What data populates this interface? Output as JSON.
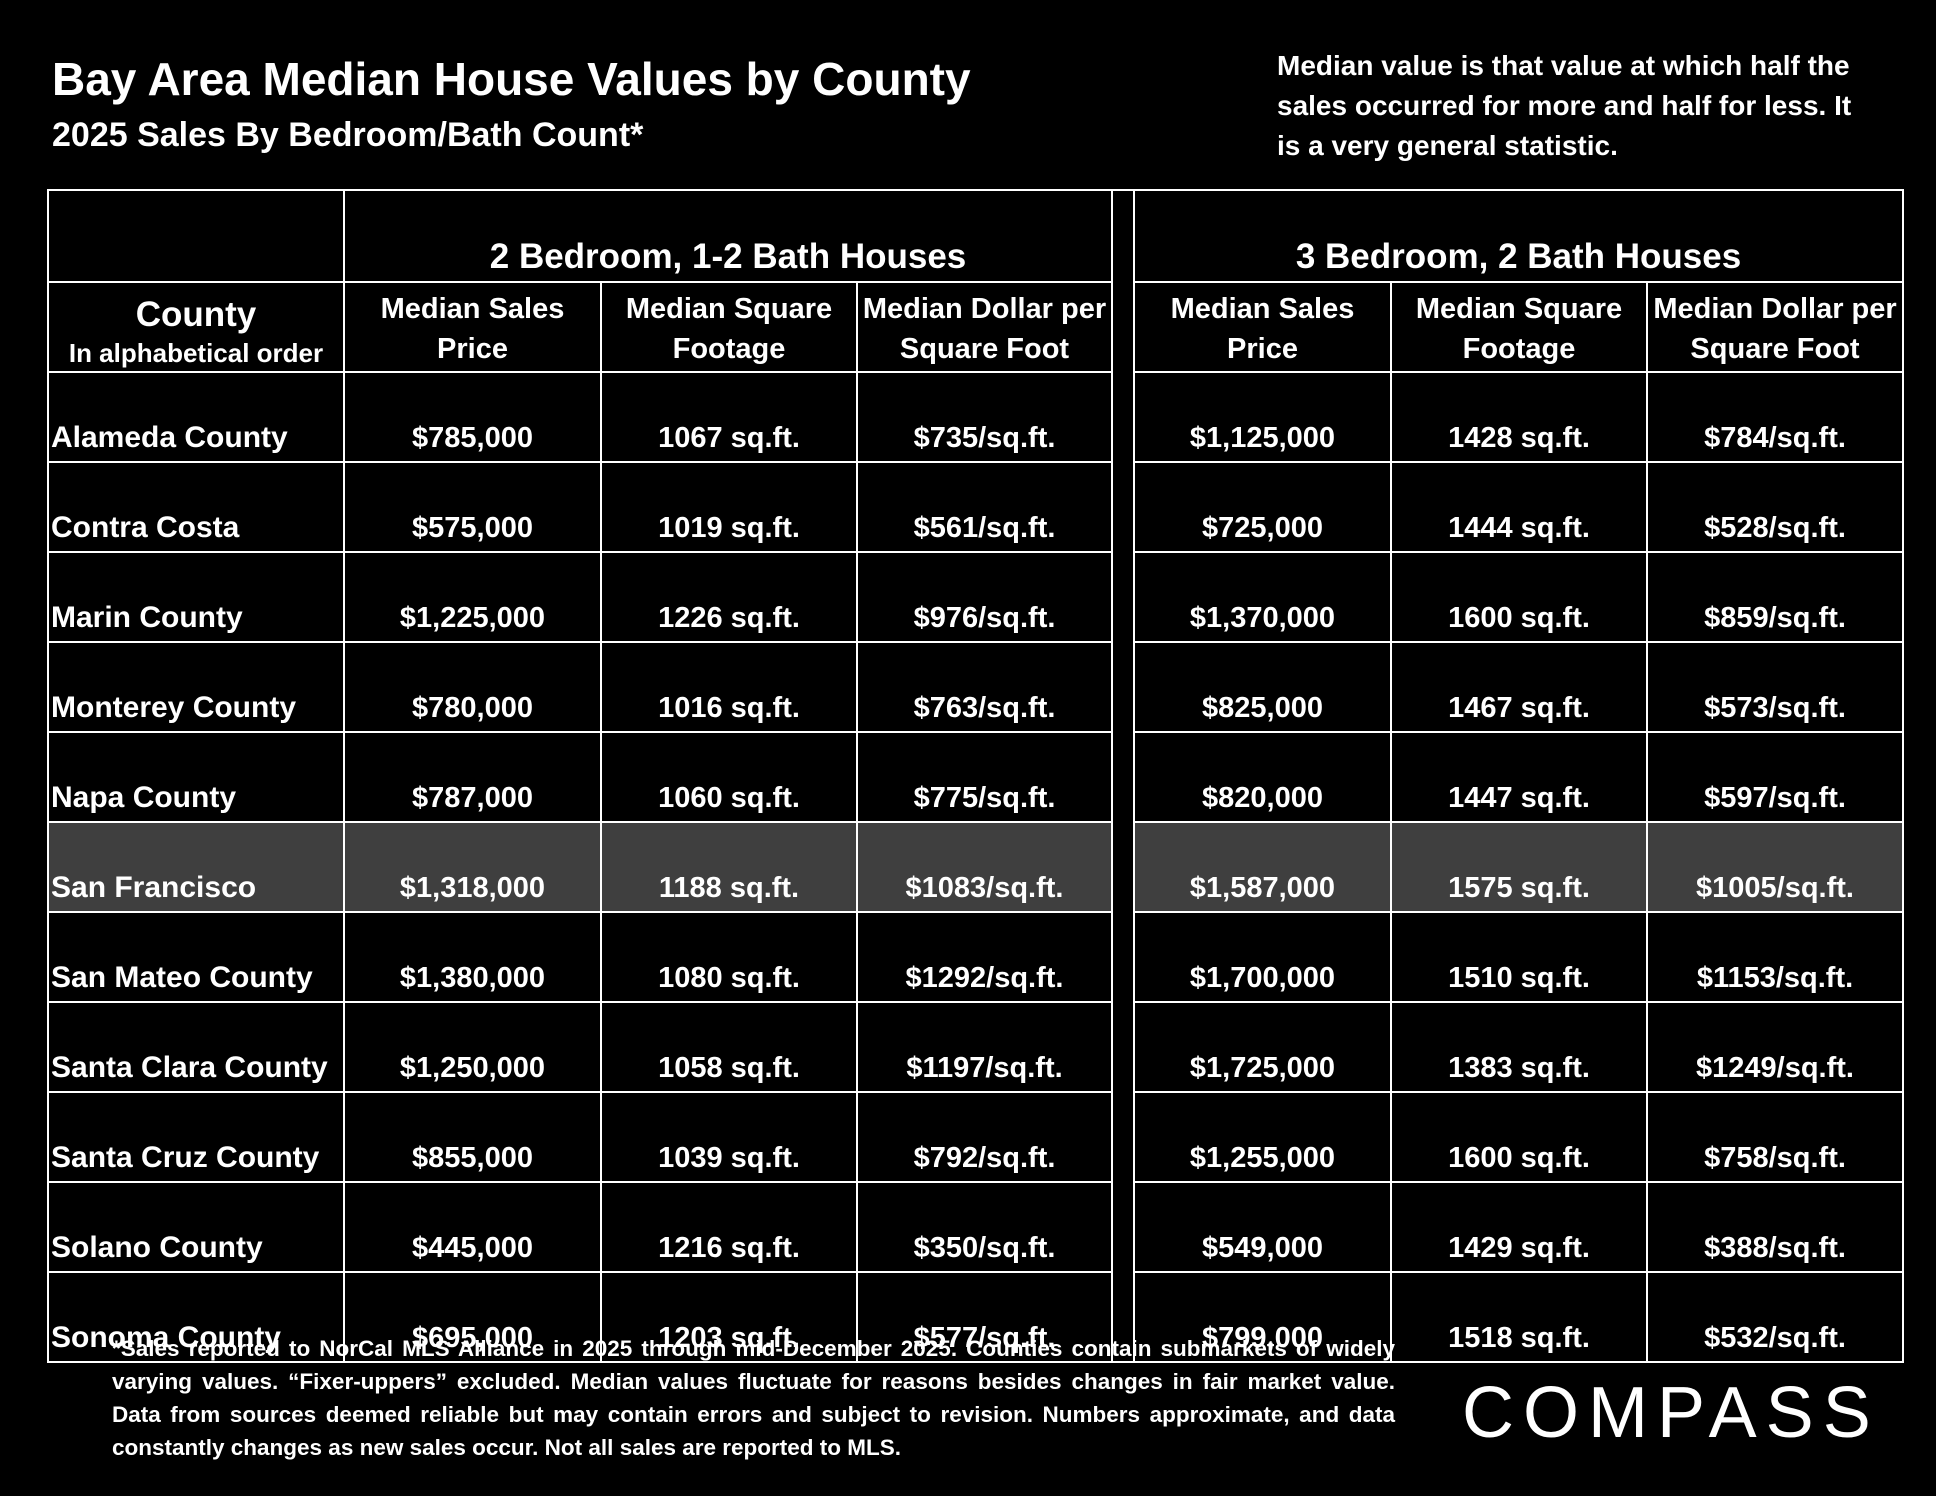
{
  "header": {
    "title": "Bay Area Median House Values by County",
    "subtitle": "2025 Sales By Bedroom/Bath Count*",
    "note": "Median value is that value at which half the sales occurred for more and half for less. It is a very general statistic."
  },
  "table": {
    "group_headers": [
      "2 Bedroom, 1-2 Bath Houses",
      "3 Bedroom, 2 Bath Houses"
    ],
    "county_header": "County",
    "county_subheader": "In alphabetical order",
    "column_headers": [
      "Median Sales Price",
      "Median Square Footage",
      "Median Dollar per Square Foot",
      "Median Sales Price",
      "Median Square Footage",
      "Median Dollar per Square Foot"
    ],
    "rows": [
      [
        "Alameda County",
        "$785,000",
        "1067 sq.ft.",
        "$735/sq.ft.",
        "$1,125,000",
        "1428 sq.ft.",
        "$784/sq.ft."
      ],
      [
        "Contra Costa",
        "$575,000",
        "1019 sq.ft.",
        "$561/sq.ft.",
        "$725,000",
        "1444 sq.ft.",
        "$528/sq.ft."
      ],
      [
        "Marin County",
        "$1,225,000",
        "1226 sq.ft.",
        "$976/sq.ft.",
        "$1,370,000",
        "1600 sq.ft.",
        "$859/sq.ft."
      ],
      [
        "Monterey County",
        "$780,000",
        "1016 sq.ft.",
        "$763/sq.ft.",
        "$825,000",
        "1467 sq.ft.",
        "$573/sq.ft."
      ],
      [
        "Napa County",
        "$787,000",
        "1060 sq.ft.",
        "$775/sq.ft.",
        "$820,000",
        "1447 sq.ft.",
        "$597/sq.ft."
      ],
      [
        "San Francisco",
        "$1,318,000",
        "1188 sq.ft.",
        "$1083/sq.ft.",
        "$1,587,000",
        "1575 sq.ft.",
        "$1005/sq.ft."
      ],
      [
        "San Mateo County",
        "$1,380,000",
        "1080 sq.ft.",
        "$1292/sq.ft.",
        "$1,700,000",
        "1510 sq.ft.",
        "$1153/sq.ft."
      ],
      [
        "Santa Clara County",
        "$1,250,000",
        "1058 sq.ft.",
        "$1197/sq.ft.",
        "$1,725,000",
        "1383 sq.ft.",
        "$1249/sq.ft."
      ],
      [
        "Santa Cruz County",
        "$855,000",
        "1039 sq.ft.",
        "$792/sq.ft.",
        "$1,255,000",
        "1600 sq.ft.",
        "$758/sq.ft."
      ],
      [
        "Solano County",
        "$445,000",
        "1216 sq.ft.",
        "$350/sq.ft.",
        "$549,000",
        "1429 sq.ft.",
        "$388/sq.ft."
      ],
      [
        "Sonoma County",
        "$695,000",
        "1203 sq.ft.",
        "$577/sq.ft.",
        "$799,000",
        "1518 sq.ft.",
        "$532/sq.ft."
      ]
    ],
    "highlighted_row": 5
  },
  "footnote": "*Sales reported to NorCal MLS Alliance in 2025 through mid-December 2025. Counties contain submarkets of widely varying values. “Fixer-uppers” excluded. Median values fluctuate for reasons besides changes in fair market value. Data from sources deemed reliable but may contain errors and subject to revision.  Numbers approximate, and data constantly changes as new sales occur. Not all sales are reported to MLS.",
  "logo": "COMPASS"
}
